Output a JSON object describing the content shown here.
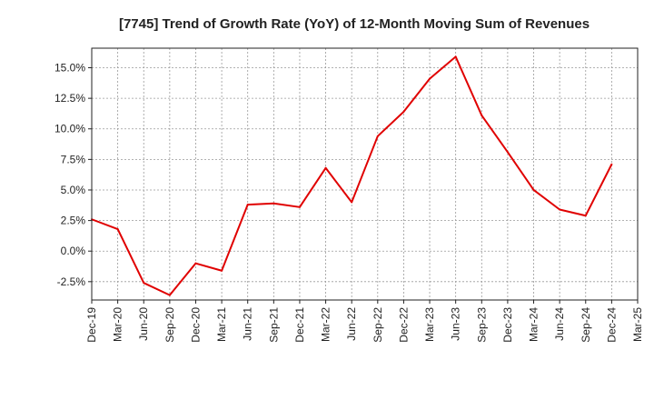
{
  "chart_data": {
    "type": "line",
    "title": "[7745]  Trend of Growth Rate (YoY) of 12-Month Moving Sum of Revenues",
    "xlabel": "",
    "ylabel": "",
    "x_tick_labels": [
      "Dec-19",
      "Mar-20",
      "Jun-20",
      "Sep-20",
      "Dec-20",
      "Mar-21",
      "Jun-21",
      "Sep-21",
      "Dec-21",
      "Mar-22",
      "Jun-22",
      "Sep-22",
      "Dec-22",
      "Mar-23",
      "Jun-23",
      "Sep-23",
      "Dec-23",
      "Mar-24",
      "Jun-24",
      "Sep-24",
      "Dec-24",
      "Mar-25"
    ],
    "y_tick_labels": [
      "-2.5%",
      "0.0%",
      "2.5%",
      "5.0%",
      "7.5%",
      "10.0%",
      "12.5%",
      "15.0%"
    ],
    "y_ticks": [
      -2.5,
      0,
      2.5,
      5,
      7.5,
      10,
      12.5,
      15
    ],
    "ylim": [
      -4.0,
      16.6
    ],
    "grid": true,
    "series": [
      {
        "color": "#e00000",
        "points": [
          {
            "x": "Dec-19",
            "y": 2.6
          },
          {
            "x": "Mar-20",
            "y": 1.8
          },
          {
            "x": "Jun-20",
            "y": -2.6
          },
          {
            "x": "Sep-20",
            "y": -3.6
          },
          {
            "x": "Dec-20",
            "y": -1.0
          },
          {
            "x": "Mar-21",
            "y": -1.6
          },
          {
            "x": "Jun-21",
            "y": 3.8
          },
          {
            "x": "Sep-21",
            "y": 3.9
          },
          {
            "x": "Dec-21",
            "y": 3.6
          },
          {
            "x": "Mar-22",
            "y": 6.8
          },
          {
            "x": "Jun-22",
            "y": 4.0
          },
          {
            "x": "Sep-22",
            "y": 9.4
          },
          {
            "x": "Dec-22",
            "y": 11.4
          },
          {
            "x": "Mar-23",
            "y": 14.1
          },
          {
            "x": "Jun-23",
            "y": 15.9
          },
          {
            "x": "Sep-23",
            "y": 11.1
          },
          {
            "x": "Dec-23",
            "y": 8.1
          },
          {
            "x": "Mar-24",
            "y": 5.0
          },
          {
            "x": "Jun-24",
            "y": 3.4
          },
          {
            "x": "Sep-24",
            "y": 2.9
          },
          {
            "x": "Dec-24",
            "y": 7.1
          }
        ]
      }
    ]
  }
}
